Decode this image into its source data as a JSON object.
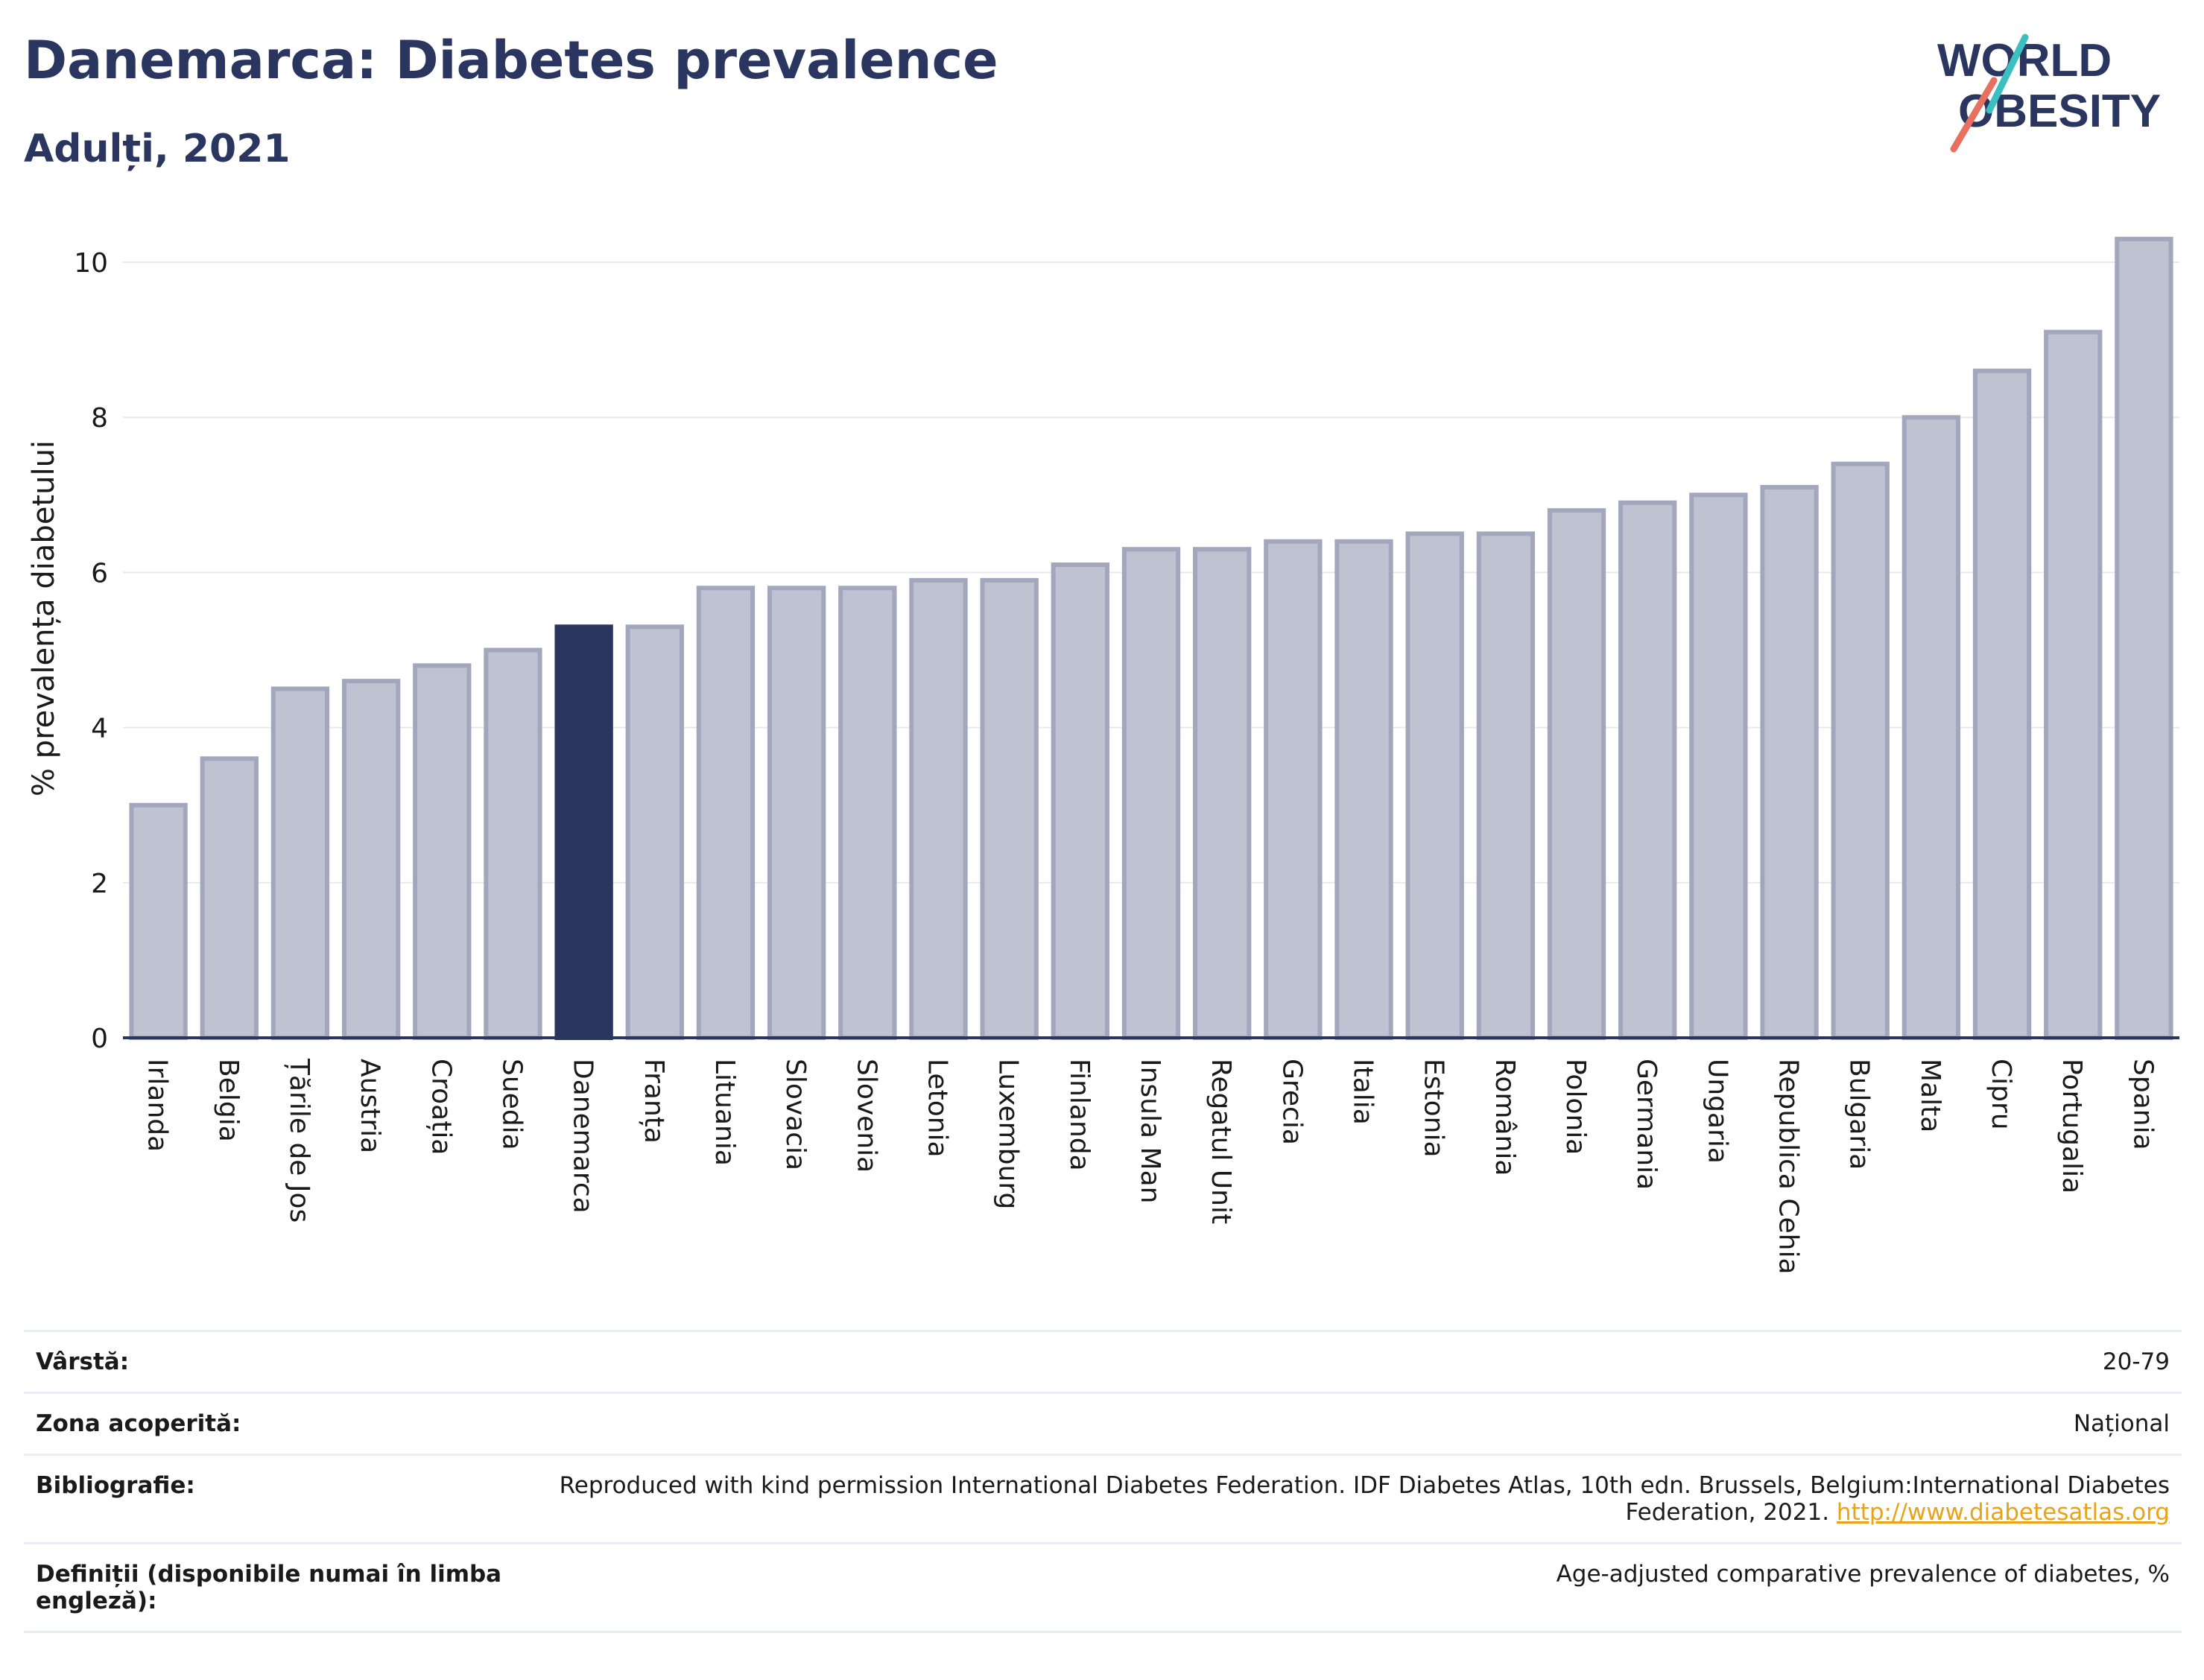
{
  "header": {
    "title": "Danemarca: Diabetes prevalence",
    "subtitle": "Adulți, 2021"
  },
  "logo": {
    "line1": "WORLD",
    "line2": "OBESITY",
    "accent_teal": "#3bbfc1",
    "accent_coral": "#e8705f"
  },
  "colors": {
    "bar": "#bfc2d0",
    "bar_border": "#a2a7bd",
    "highlight": "#2a3560",
    "grid": "#e6e9ef",
    "axis": "#2a3560"
  },
  "chart_data": {
    "type": "bar",
    "title": "Danemarca: Diabetes prevalence",
    "subtitle": "Adulți, 2021",
    "ylabel": "% prevalența diabetului",
    "xlabel": "",
    "ylim": [
      0,
      10.5
    ],
    "yticks": [
      0,
      2,
      4,
      6,
      8,
      10
    ],
    "grid": true,
    "highlight": "Danemarca",
    "categories": [
      "Irlanda",
      "Belgia",
      "Țările de Jos",
      "Austria",
      "Croația",
      "Suedia",
      "Danemarca",
      "Franța",
      "Lituania",
      "Slovacia",
      "Slovenia",
      "Letonia",
      "Luxemburg",
      "Finlanda",
      "Insula Man",
      "Regatul Unit",
      "Grecia",
      "Italia",
      "Estonia",
      "România",
      "Polonia",
      "Germania",
      "Ungaria",
      "Republica Cehia",
      "Bulgaria",
      "Malta",
      "Cipru",
      "Portugalia",
      "Spania"
    ],
    "values": [
      3.0,
      3.6,
      4.5,
      4.6,
      4.8,
      5.0,
      5.3,
      5.3,
      5.8,
      5.8,
      5.8,
      5.9,
      5.9,
      6.1,
      6.3,
      6.3,
      6.4,
      6.4,
      6.5,
      6.5,
      6.8,
      6.9,
      7.0,
      7.1,
      7.4,
      8.0,
      8.6,
      9.1,
      10.3
    ]
  },
  "meta": {
    "rows": [
      {
        "key": "Vârstă:",
        "value": "20-79"
      },
      {
        "key": "Zona acoperită:",
        "value": "Național"
      },
      {
        "key": "Bibliografie:",
        "value": "Reproduced with kind permission International Diabetes Federation.  IDF Diabetes Atlas, 10th edn. Brussels, Belgium:International Diabetes Federation, 2021.",
        "link": "http://www.diabetesatlas.org"
      },
      {
        "key": "Definiții (disponibile numai în limba engleză):",
        "value": "Age-adjusted comparative prevalence of diabetes, %"
      }
    ]
  }
}
